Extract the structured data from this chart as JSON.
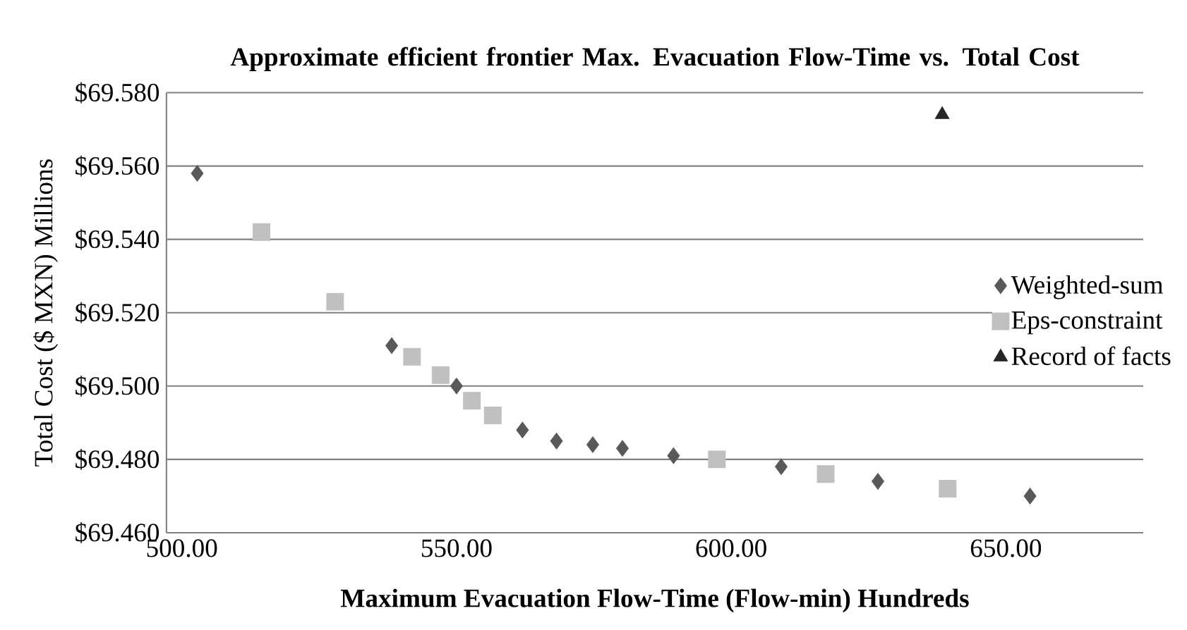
{
  "chart_data": {
    "type": "scatter",
    "title": "Approximate efficient frontier Max. Evacuation Flow-Time vs. Total Cost",
    "xlabel": "Maximum Evacuation Flow-Time (Flow-min) Hundreds",
    "ylabel": "Total Cost ($ MXN)  Millions",
    "xlim": [
      497.2,
      675
    ],
    "ylim": [
      69.46,
      69.58
    ],
    "xticks": [
      {
        "value": 500,
        "label": "500.00"
      },
      {
        "value": 550,
        "label": "550.00"
      },
      {
        "value": 600,
        "label": "600.00"
      },
      {
        "value": 650,
        "label": "650.00"
      }
    ],
    "yticks": [
      {
        "value": 69.46,
        "label": "$69.460"
      },
      {
        "value": 69.48,
        "label": "$69.480"
      },
      {
        "value": 69.5,
        "label": "$69.500"
      },
      {
        "value": 69.52,
        "label": "$69.520"
      },
      {
        "value": 69.54,
        "label": "$69.540"
      },
      {
        "value": 69.56,
        "label": "$69.560"
      },
      {
        "value": 69.58,
        "label": "$69.580"
      }
    ],
    "grid": "y",
    "legend": "right",
    "series": [
      {
        "name": "Weighted-sum",
        "color": "#595959",
        "marker": "diamond",
        "x": [
          502.8,
          538.2,
          550.0,
          562.0,
          568.2,
          574.8,
          580.2,
          589.5,
          609.1,
          626.7,
          654.4
        ],
        "values": [
          69.558,
          69.511,
          69.5,
          69.488,
          69.485,
          69.484,
          69.483,
          69.481,
          69.478,
          69.474,
          69.47
        ]
      },
      {
        "name": "Eps-constraint",
        "color": "#c0c0c0",
        "marker": "square",
        "x": [
          514.5,
          527.9,
          541.9,
          547.1,
          552.8,
          556.6,
          597.4,
          617.2,
          639.4
        ],
        "values": [
          69.542,
          69.523,
          69.508,
          69.503,
          69.496,
          69.492,
          69.48,
          69.476,
          69.472
        ]
      },
      {
        "name": "Record of facts",
        "color": "#262626",
        "marker": "triangle",
        "x": [
          638.4
        ],
        "values": [
          69.574
        ]
      }
    ]
  }
}
